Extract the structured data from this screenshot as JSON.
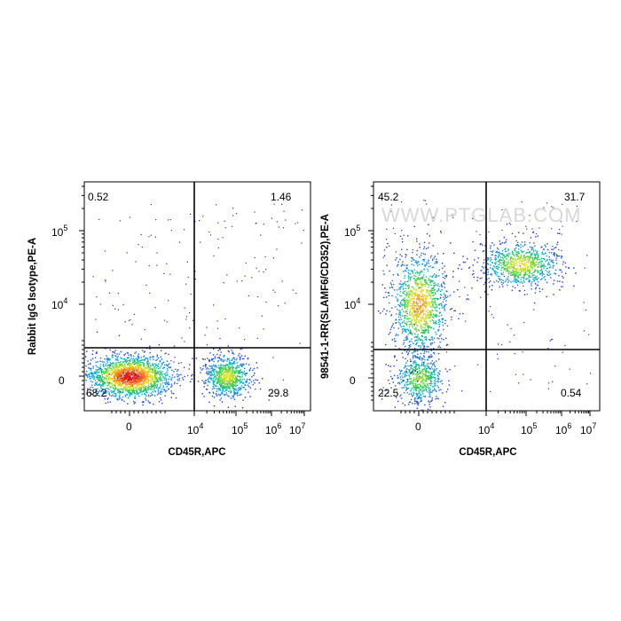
{
  "chart_data": [
    {
      "type": "scatter",
      "style": "density-pseudocolor",
      "xlabel": "CD45R,APC",
      "ylabel": "Rabbit IgG Isotype,PE-A",
      "x_ticks": [
        {
          "value": 0,
          "label": "0",
          "exp": ""
        },
        {
          "value": 10000,
          "label": "10",
          "exp": "4"
        },
        {
          "value": 100000,
          "label": "10",
          "exp": "5"
        },
        {
          "value": 1000000,
          "label": "10",
          "exp": "6"
        },
        {
          "value": 10000000,
          "label": "10",
          "exp": "7"
        }
      ],
      "y_ticks": [
        {
          "value": 0,
          "label": "0",
          "exp": ""
        },
        {
          "value": 10000,
          "label": "10",
          "exp": "4"
        },
        {
          "value": 100000,
          "label": "10",
          "exp": "5"
        }
      ],
      "gate": {
        "x": 10000,
        "y": 2000
      },
      "quadrants": {
        "upper_left": "0.52",
        "upper_right": "1.46",
        "lower_left": "68.2",
        "lower_right": "29.8"
      },
      "populations": [
        {
          "name_hint": "",
          "x_center": 0,
          "y_center": 0,
          "share": 0.68
        },
        {
          "name_hint": "",
          "x_center": 60000,
          "y_center": 0,
          "share": 0.3
        }
      ],
      "watermark": ""
    },
    {
      "type": "scatter",
      "style": "density-pseudocolor",
      "xlabel": "CD45R,APC",
      "ylabel": "98541-1-RR(SLAMF6/CD352),PE-A",
      "x_ticks": [
        {
          "value": 0,
          "label": "0",
          "exp": ""
        },
        {
          "value": 10000,
          "label": "10",
          "exp": "4"
        },
        {
          "value": 100000,
          "label": "10",
          "exp": "5"
        },
        {
          "value": 1000000,
          "label": "10",
          "exp": "6"
        },
        {
          "value": 10000000,
          "label": "10",
          "exp": "7"
        }
      ],
      "y_ticks": [
        {
          "value": 0,
          "label": "0",
          "exp": ""
        },
        {
          "value": 10000,
          "label": "10",
          "exp": "4"
        },
        {
          "value": 100000,
          "label": "10",
          "exp": "5"
        }
      ],
      "gate": {
        "x": 10000,
        "y": 2000
      },
      "quadrants": {
        "upper_left": "45.2",
        "upper_right": "31.7",
        "lower_left": "22.5",
        "lower_right": "0.54"
      },
      "populations": [
        {
          "name_hint": "",
          "x_center": 0,
          "y_center": 0,
          "share": 0.22
        },
        {
          "name_hint": "",
          "x_center": 0,
          "y_center": 10000,
          "share": 0.45
        },
        {
          "name_hint": "",
          "x_center": 70000,
          "y_center": 35000,
          "share": 0.32
        }
      ],
      "watermark": "WWW.PTGLAB.COM"
    }
  ]
}
